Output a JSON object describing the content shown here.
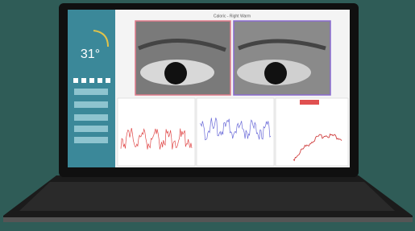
{
  "screen": {
    "title": "Caloric - Right Warm",
    "temperature": "31°"
  }
}
